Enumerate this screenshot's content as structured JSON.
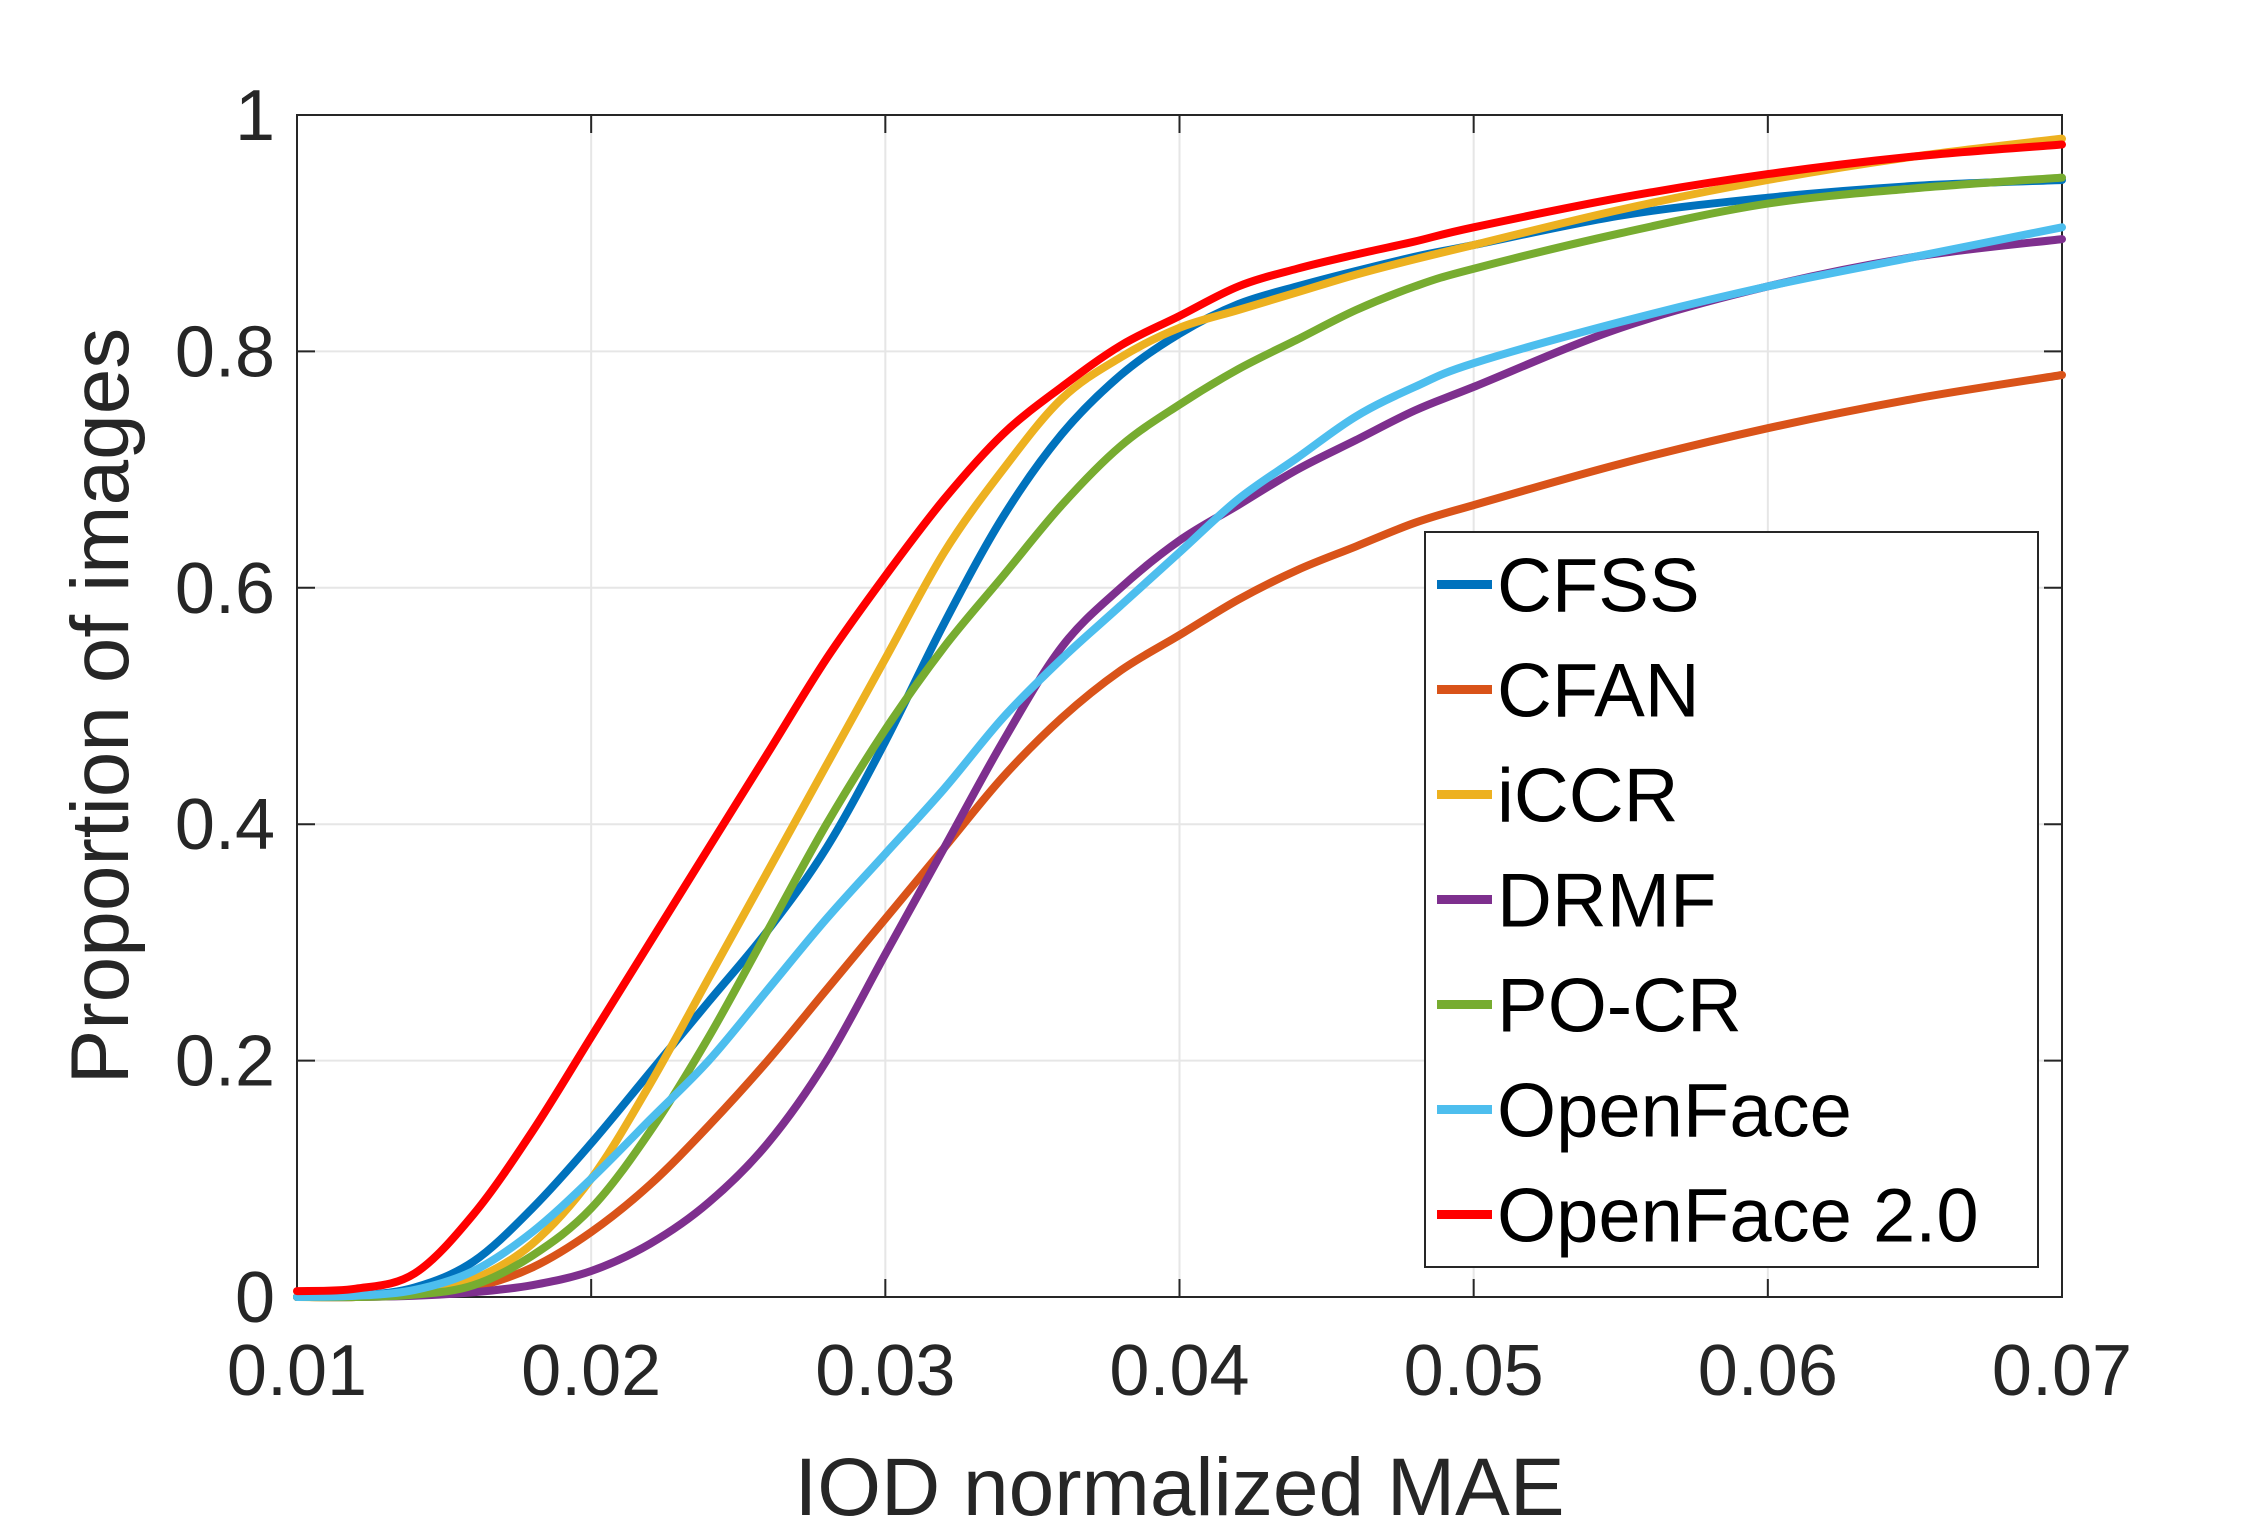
{
  "chart_data": {
    "type": "line",
    "title": "",
    "xlabel": "IOD normalized MAE",
    "ylabel": "Proportion of images",
    "xlim": [
      0.01,
      0.07
    ],
    "ylim": [
      0,
      1
    ],
    "xticks": [
      "0.01",
      "0.02",
      "0.03",
      "0.04",
      "0.05",
      "0.06",
      "0.07"
    ],
    "yticks": [
      "0",
      "0.2",
      "0.4",
      "0.6",
      "0.8",
      "1"
    ],
    "grid": true,
    "legend_position": "bottom-right",
    "x": [
      0.01,
      0.012,
      0.014,
      0.016,
      0.018,
      0.02,
      0.022,
      0.024,
      0.026,
      0.028,
      0.03,
      0.032,
      0.034,
      0.036,
      0.038,
      0.04,
      0.042,
      0.044,
      0.046,
      0.048,
      0.05,
      0.055,
      0.06,
      0.065,
      0.07
    ],
    "series": [
      {
        "name": "CFSS",
        "color": "#0072BD",
        "values": [
          0,
          0.001,
          0.008,
          0.03,
          0.075,
          0.13,
          0.19,
          0.25,
          0.31,
          0.38,
          0.47,
          0.57,
          0.66,
          0.73,
          0.78,
          0.815,
          0.84,
          0.855,
          0.868,
          0.88,
          0.89,
          0.915,
          0.93,
          0.94,
          0.945
        ]
      },
      {
        "name": "CFAN",
        "color": "#D95319",
        "values": [
          0,
          0,
          0.002,
          0.008,
          0.025,
          0.055,
          0.095,
          0.145,
          0.2,
          0.26,
          0.32,
          0.38,
          0.44,
          0.49,
          0.53,
          0.56,
          0.59,
          0.615,
          0.635,
          0.655,
          0.67,
          0.705,
          0.735,
          0.76,
          0.78
        ]
      },
      {
        "name": "iCCR",
        "color": "#EDB120",
        "values": [
          0,
          0,
          0.003,
          0.015,
          0.045,
          0.1,
          0.18,
          0.27,
          0.36,
          0.45,
          0.54,
          0.63,
          0.7,
          0.76,
          0.795,
          0.82,
          0.835,
          0.85,
          0.865,
          0.878,
          0.89,
          0.92,
          0.945,
          0.965,
          0.98
        ]
      },
      {
        "name": "DRMF",
        "color": "#7E2F8E",
        "values": [
          0,
          0,
          0.001,
          0.004,
          0.01,
          0.022,
          0.045,
          0.08,
          0.13,
          0.2,
          0.29,
          0.38,
          0.47,
          0.55,
          0.6,
          0.64,
          0.67,
          0.7,
          0.725,
          0.75,
          0.77,
          0.82,
          0.855,
          0.88,
          0.895
        ]
      },
      {
        "name": "PO-CR",
        "color": "#77AC30",
        "values": [
          0,
          0,
          0.002,
          0.01,
          0.035,
          0.075,
          0.14,
          0.22,
          0.31,
          0.4,
          0.48,
          0.55,
          0.61,
          0.67,
          0.72,
          0.755,
          0.785,
          0.81,
          0.835,
          0.855,
          0.87,
          0.9,
          0.925,
          0.938,
          0.947
        ]
      },
      {
        "name": "OpenFace",
        "color": "#4DBEEE",
        "values": [
          0,
          0.001,
          0.006,
          0.022,
          0.055,
          0.1,
          0.15,
          0.2,
          0.26,
          0.32,
          0.375,
          0.43,
          0.49,
          0.54,
          0.585,
          0.63,
          0.675,
          0.71,
          0.745,
          0.77,
          0.79,
          0.825,
          0.855,
          0.88,
          0.905
        ]
      },
      {
        "name": "OpenFace 2.0",
        "color": "#FF0000",
        "values": [
          0.005,
          0.007,
          0.02,
          0.07,
          0.14,
          0.22,
          0.3,
          0.38,
          0.46,
          0.54,
          0.61,
          0.675,
          0.73,
          0.77,
          0.805,
          0.83,
          0.855,
          0.87,
          0.882,
          0.893,
          0.905,
          0.93,
          0.95,
          0.965,
          0.975
        ]
      }
    ]
  }
}
